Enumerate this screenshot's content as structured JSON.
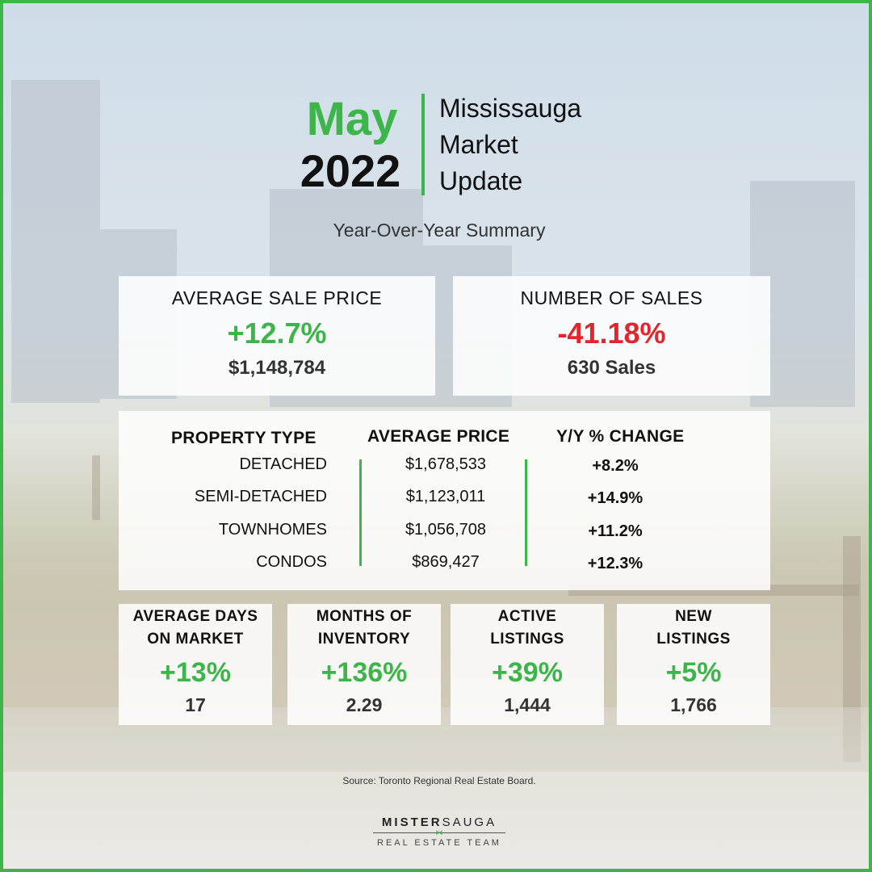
{
  "header": {
    "month": "May",
    "year": "2022",
    "title_lines": [
      "Mississauga",
      "Market",
      "Update"
    ],
    "subtitle": "Year-Over-Year Summary"
  },
  "average_sale_price": {
    "label": "AVERAGE SALE PRICE",
    "change": "+12.7%",
    "value": "$1,148,784"
  },
  "number_of_sales": {
    "label": "NUMBER OF SALES",
    "change": "-41.18%",
    "value": "630 Sales"
  },
  "property_table": {
    "headers": [
      "PROPERTY TYPE",
      "AVERAGE PRICE",
      "Y/Y % CHANGE"
    ],
    "rows": [
      {
        "type": "DETACHED",
        "price": "$1,678,533",
        "change": "+8.2%"
      },
      {
        "type": "SEMI-DETACHED",
        "price": "$1,123,011",
        "change": "+14.9%"
      },
      {
        "type": "TOWNHOMES",
        "price": "$1,056,708",
        "change": "+11.2%"
      },
      {
        "type": "CONDOS",
        "price": "$869,427",
        "change": "+12.3%"
      }
    ]
  },
  "stats": [
    {
      "label_lines": [
        "AVERAGE DAYS",
        "ON MARKET"
      ],
      "change": "+13%",
      "value": "17"
    },
    {
      "label_lines": [
        "MONTHS OF",
        "INVENTORY"
      ],
      "change": "+136%",
      "value": "2.29"
    },
    {
      "label_lines": [
        "ACTIVE",
        "LISTINGS"
      ],
      "change": "+39%",
      "value": "1,444"
    },
    {
      "label_lines": [
        "NEW",
        "LISTINGS"
      ],
      "change": "+5%",
      "value": "1,766"
    }
  ],
  "source": "Source: Toronto Regional Real Estate Board.",
  "logo": {
    "name_bold": "MISTER",
    "name_light": "SAUGA",
    "tagline": "REAL ESTATE TEAM"
  },
  "colors": {
    "accent_green": "#3db54a",
    "negative_red": "#e3262b",
    "border": "#3db54a"
  }
}
